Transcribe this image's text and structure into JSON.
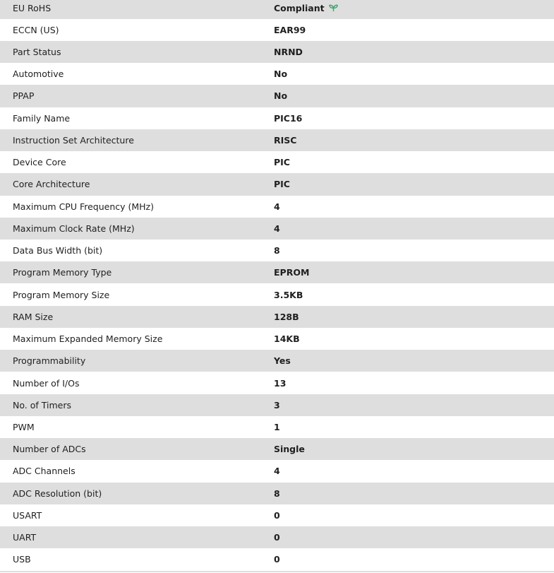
{
  "colors": {
    "stripe": "#dedede",
    "leaf": "#3aa36a"
  },
  "rows": [
    {
      "label": "EU RoHS",
      "value": "Compliant",
      "icon": "leaf-icon"
    },
    {
      "label": "ECCN (US)",
      "value": "EAR99"
    },
    {
      "label": "Part Status",
      "value": "NRND"
    },
    {
      "label": "Automotive",
      "value": "No"
    },
    {
      "label": "PPAP",
      "value": "No"
    },
    {
      "label": "Family Name",
      "value": "PIC16"
    },
    {
      "label": "Instruction Set Architecture",
      "value": "RISC"
    },
    {
      "label": "Device Core",
      "value": "PIC"
    },
    {
      "label": "Core Architecture",
      "value": "PIC"
    },
    {
      "label": "Maximum CPU Frequency (MHz)",
      "value": "4"
    },
    {
      "label": "Maximum Clock Rate (MHz)",
      "value": "4"
    },
    {
      "label": "Data Bus Width (bit)",
      "value": "8"
    },
    {
      "label": "Program Memory Type",
      "value": "EPROM"
    },
    {
      "label": "Program Memory Size",
      "value": "3.5KB"
    },
    {
      "label": "RAM Size",
      "value": "128B"
    },
    {
      "label": "Maximum Expanded Memory Size",
      "value": "14KB"
    },
    {
      "label": "Programmability",
      "value": "Yes"
    },
    {
      "label": "Number of I/Os",
      "value": "13"
    },
    {
      "label": "No. of Timers",
      "value": "3"
    },
    {
      "label": "PWM",
      "value": "1"
    },
    {
      "label": "Number of ADCs",
      "value": "Single"
    },
    {
      "label": "ADC Channels",
      "value": "4"
    },
    {
      "label": "ADC Resolution (bit)",
      "value": "8"
    },
    {
      "label": "USART",
      "value": "0"
    },
    {
      "label": "UART",
      "value": "0"
    },
    {
      "label": "USB",
      "value": "0"
    }
  ]
}
